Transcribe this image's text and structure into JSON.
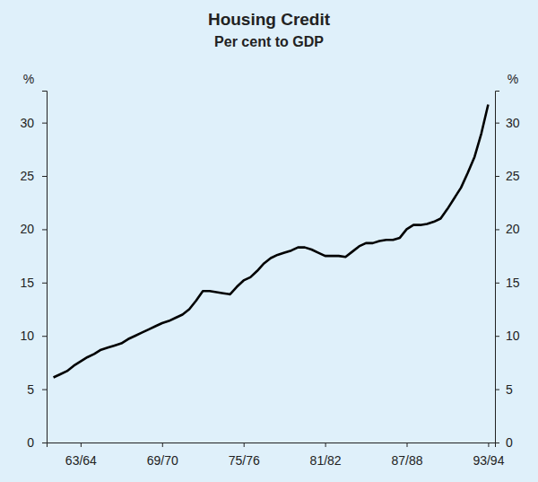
{
  "chart_data": {
    "type": "line",
    "title": "Housing Credit",
    "subtitle": "Per cent to GDP",
    "ylabel": "%",
    "categories": [
      null,
      null,
      null,
      null,
      "63/64",
      null,
      null,
      null,
      null,
      null,
      null,
      null,
      null,
      null,
      null,
      null,
      "69/70",
      null,
      null,
      null,
      null,
      null,
      null,
      null,
      null,
      null,
      null,
      null,
      "75/76",
      null,
      null,
      null,
      null,
      null,
      null,
      null,
      null,
      null,
      null,
      null,
      "81/82",
      null,
      null,
      null,
      null,
      null,
      null,
      null,
      null,
      null,
      null,
      null,
      "87/88",
      null,
      null,
      null,
      null,
      null,
      null,
      null,
      null,
      null,
      null,
      null,
      "93/94"
    ],
    "series": [
      {
        "name": "Housing credit",
        "color": "#000000",
        "values": [
          6.1,
          6.4,
          6.7,
          7.2,
          7.6,
          8.0,
          8.3,
          8.7,
          8.9,
          9.1,
          9.3,
          9.7,
          10.0,
          10.3,
          10.6,
          10.9,
          11.2,
          11.4,
          11.7,
          12.0,
          12.5,
          13.3,
          14.2,
          14.2,
          14.1,
          14.0,
          13.9,
          14.6,
          15.2,
          15.5,
          16.1,
          16.8,
          17.3,
          17.6,
          17.8,
          18.0,
          18.3,
          18.3,
          18.1,
          17.8,
          17.5,
          17.5,
          17.5,
          17.4,
          17.9,
          18.4,
          18.7,
          18.7,
          18.9,
          19.0,
          19.0,
          19.2,
          20.0,
          20.4,
          20.4,
          20.5,
          20.7,
          21.0,
          21.9,
          22.9,
          23.9,
          25.3,
          26.8,
          29.0,
          31.7
        ]
      }
    ],
    "ylim": [
      0,
      33
    ],
    "yticks": [
      0,
      5,
      10,
      15,
      20,
      25,
      30
    ],
    "grid": false
  }
}
